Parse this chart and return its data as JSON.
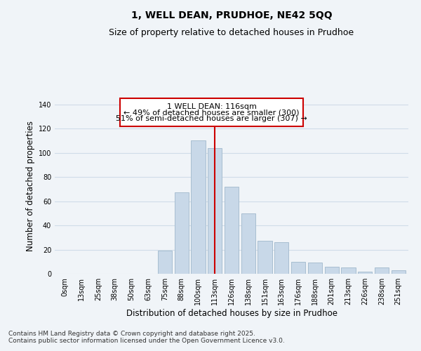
{
  "title_line1": "1, WELL DEAN, PRUDHOE, NE42 5QQ",
  "title_line2": "Size of property relative to detached houses in Prudhoe",
  "xlabel": "Distribution of detached houses by size in Prudhoe",
  "ylabel": "Number of detached properties",
  "footnote_line1": "Contains HM Land Registry data © Crown copyright and database right 2025.",
  "footnote_line2": "Contains public sector information licensed under the Open Government Licence v3.0.",
  "categories": [
    "0sqm",
    "13sqm",
    "25sqm",
    "38sqm",
    "50sqm",
    "63sqm",
    "75sqm",
    "88sqm",
    "100sqm",
    "113sqm",
    "126sqm",
    "138sqm",
    "151sqm",
    "163sqm",
    "176sqm",
    "188sqm",
    "201sqm",
    "213sqm",
    "226sqm",
    "238sqm",
    "251sqm"
  ],
  "values": [
    0,
    0,
    0,
    0,
    0,
    0,
    19,
    67,
    110,
    104,
    72,
    50,
    27,
    26,
    10,
    9,
    6,
    5,
    2,
    5,
    3
  ],
  "bar_color": "#c8d8e8",
  "bar_edgecolor": "#a0b8cc",
  "ylim": [
    0,
    145
  ],
  "yticks": [
    0,
    20,
    40,
    60,
    80,
    100,
    120,
    140
  ],
  "property_label": "1 WELL DEAN: 116sqm",
  "annotation_line1": "← 49% of detached houses are smaller (300)",
  "annotation_line2": "51% of semi-detached houses are larger (307) →",
  "annotation_box_color": "#cc0000",
  "vline_color": "#cc0000",
  "vline_x_index": 9,
  "grid_color": "#d0dce8",
  "background_color": "#f0f4f8",
  "title_fontsize": 10,
  "subtitle_fontsize": 9,
  "axis_label_fontsize": 8.5,
  "tick_fontsize": 7,
  "annotation_fontsize": 8
}
